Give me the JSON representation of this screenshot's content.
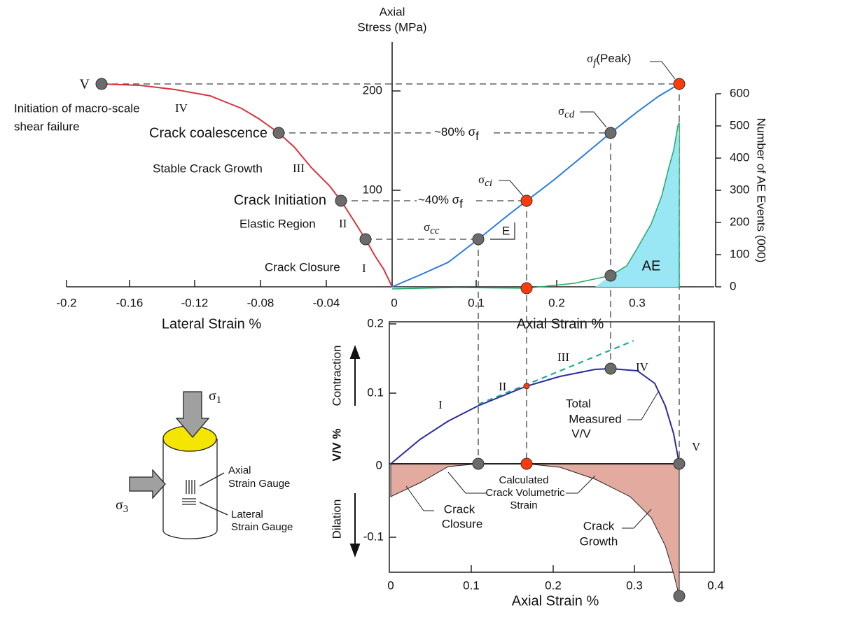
{
  "top_plot": {
    "y_axis_title": [
      "Axial",
      "Stress (MPa)"
    ],
    "y_ticks": [
      "100",
      "200"
    ],
    "lateral_ticks": [
      "-0.2",
      "-0.16",
      "-0.12",
      "-0.08",
      "-0.04",
      "0"
    ],
    "lateral_axis_title": "Lateral Strain %",
    "axial_ticks": [
      "0.1",
      "0.2",
      "0.3"
    ],
    "axial_axis_title": "Axial Strain %",
    "right_axis_title": "Number of AE Events (000)",
    "right_ticks": [
      "0",
      "100",
      "200",
      "300",
      "400",
      "500",
      "600"
    ],
    "stages": {
      "v": "V",
      "macro_line1": "Initiation of macro-scale",
      "macro_numeral": "IV",
      "macro_line2": "shear failure",
      "coalescence": "Crack coalescence",
      "stable": "Stable Crack Growth",
      "stable_numeral": "III",
      "initiation": "Crack Initiation",
      "elastic": "Elastic Region",
      "elastic_numeral": "II",
      "closure": "Crack Closure",
      "closure_numeral": "I"
    },
    "peak": {
      "symbol": "σ",
      "subscript": "f",
      "suffix": "(Peak)"
    },
    "cd": {
      "symbol": "σ",
      "subscript": "cd"
    },
    "eighty": {
      "prefix": "~80% σ",
      "subscript": "f"
    },
    "ci": {
      "symbol": "σ",
      "subscript": "ci"
    },
    "forty": {
      "prefix": "~40% σ",
      "subscript": "f"
    },
    "cc": {
      "symbol": "σ",
      "subscript": "cc"
    },
    "modulus": "E",
    "ae": "AE"
  },
  "bottom_plot": {
    "y_ticks": [
      "0.2",
      "0.1",
      "0",
      "-0.1"
    ],
    "contraction": "Contraction",
    "y_axis_title": "V/V %",
    "dilation": "Dilation",
    "x_ticks": [
      "0",
      "0.1",
      "0.2",
      "0.3",
      "0.4"
    ],
    "x_axis_title": "Axial Strain %",
    "numerals": [
      "I",
      "II",
      "III",
      "IV",
      "V"
    ],
    "total": [
      "Total",
      "Measured",
      "V/V"
    ],
    "calculated": [
      "Calculated",
      "Crack Volumetric",
      "Strain"
    ],
    "crack_closure": [
      "Crack",
      "Closure"
    ],
    "crack_growth": [
      "Crack",
      "Growth"
    ]
  },
  "specimen": {
    "sigma1": {
      "symbol": "σ",
      "subscript": "1"
    },
    "sigma3": {
      "symbol": "σ",
      "subscript": "3"
    },
    "axial_gauge": [
      "Axial",
      "Strain Gauge"
    ],
    "lateral_gauge": [
      "Lateral",
      "Strain Gauge"
    ]
  }
}
